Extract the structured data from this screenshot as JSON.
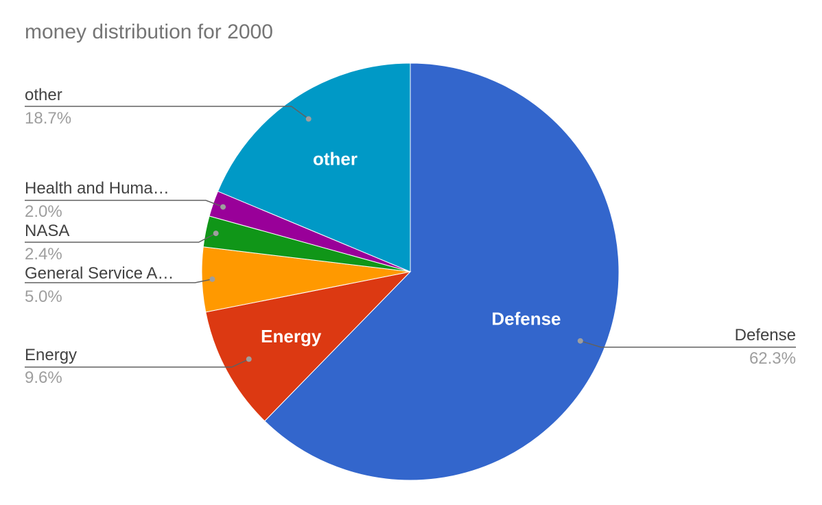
{
  "chart_data": {
    "type": "pie",
    "title": "money distribution for 2000",
    "start_angle_deg": 0,
    "direction": "clockwise",
    "slices": [
      {
        "name": "Defense",
        "label": "Defense",
        "value": 62.3,
        "percent_label": "62.3%",
        "inner_label": "Defense",
        "color": "#3366cc"
      },
      {
        "name": "Energy",
        "label": "Energy",
        "value": 9.6,
        "percent_label": "9.6%",
        "inner_label": "Energy",
        "color": "#dc3912"
      },
      {
        "name": "General Service A...",
        "label": "General Service A…",
        "value": 5.0,
        "percent_label": "5.0%",
        "inner_label": "",
        "color": "#ff9900"
      },
      {
        "name": "NASA",
        "label": "NASA",
        "value": 2.4,
        "percent_label": "2.4%",
        "inner_label": "",
        "color": "#109618"
      },
      {
        "name": "Health and Huma...",
        "label": "Health and Huma…",
        "value": 2.0,
        "percent_label": "2.0%",
        "inner_label": "",
        "color": "#990099"
      },
      {
        "name": "other",
        "label": "other",
        "value": 18.7,
        "percent_label": "18.7%",
        "inner_label": "other",
        "color": "#0099c6"
      }
    ]
  }
}
